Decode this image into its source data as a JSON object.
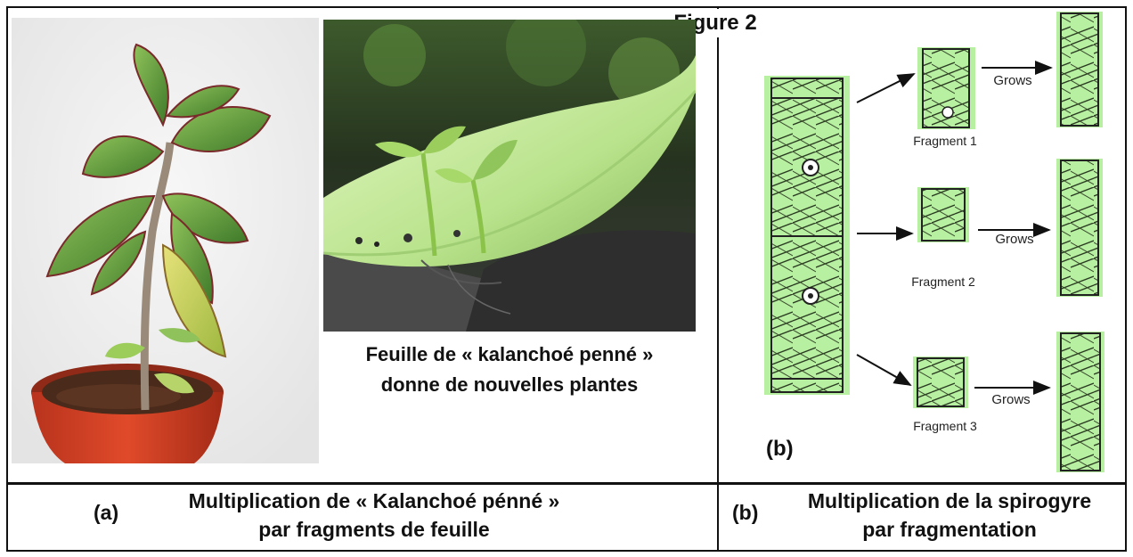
{
  "figure_title": "Figure 2",
  "panel_a": {
    "leaf_caption_line1": "Feuille de « kalanchoé penné »",
    "leaf_caption_line2": "donne de nouvelles plantes",
    "label": "(a)",
    "footer_line1": "Multiplication de « Kalanchoé pénné »",
    "footer_line2": "par fragments de feuille"
  },
  "panel_b": {
    "inner_label": "(b)",
    "label": "(b)",
    "fragments": [
      "Fragment 1",
      "Fragment 2",
      "Fragment 3"
    ],
    "grows": [
      "Grows",
      "Grows",
      "Grows"
    ],
    "footer_line1": "Multiplication de la spirogyre",
    "footer_line2": "par fragmentation"
  }
}
